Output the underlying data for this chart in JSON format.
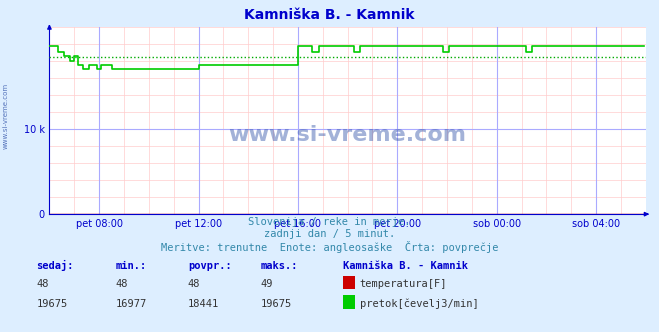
{
  "title": "Kamniška B. - Kamnik",
  "bg_color": "#ddeeff",
  "plot_bg_color": "#ffffff",
  "grid_color_major": "#aaaaff",
  "grid_color_minor": "#ffcccc",
  "x_min": 0,
  "x_max": 288,
  "y_min": 0,
  "y_max": 22000,
  "y_ticks": [
    0,
    10000
  ],
  "y_tick_labels": [
    "0",
    "10 k"
  ],
  "x_tick_positions": [
    24,
    72,
    120,
    168,
    216,
    264
  ],
  "x_tick_labels": [
    "pet 08:00",
    "pet 12:00",
    "pet 16:00",
    "pet 20:00",
    "sob 00:00",
    "sob 04:00"
  ],
  "avg_line_value": 18441,
  "avg_line_color": "#00aa00",
  "flow_color": "#00cc00",
  "temp_color": "#cc0000",
  "axis_color": "#0000cc",
  "title_color": "#0000cc",
  "watermark": "www.si-vreme.com",
  "watermark_color": "#3355aa",
  "subtitle1": "Slovenija / reke in morje.",
  "subtitle2": "zadnji dan / 5 minut.",
  "subtitle3": "Meritve: trenutne  Enote: angleosaške  Črta: povprečje",
  "subtitle_color": "#3388aa",
  "legend_title": "Kamniška B. - Kamnik",
  "legend_title_color": "#0000cc",
  "stat_headers": [
    "sedaj:",
    "min.:",
    "povpr.:",
    "maks.:"
  ],
  "stat_temp": [
    48,
    48,
    48,
    49
  ],
  "stat_flow": [
    19675,
    16977,
    18441,
    19675
  ],
  "label_temp": "temperatura[F]",
  "label_flow": "pretok[čevelj3/min]",
  "flow_data": [
    19675,
    19675,
    19675,
    19675,
    19000,
    19000,
    19000,
    18500,
    18500,
    18500,
    18000,
    18000,
    18500,
    18500,
    17500,
    17500,
    17000,
    17000,
    17000,
    17500,
    17500,
    17500,
    17500,
    17000,
    17000,
    17500,
    17500,
    17500,
    17500,
    17500,
    17000,
    17000,
    17000,
    17000,
    17000,
    17000,
    17000,
    17000,
    17000,
    17000,
    17000,
    17000,
    17000,
    17000,
    17000,
    17000,
    17000,
    17000,
    17000,
    17000,
    17000,
    17000,
    17000,
    17000,
    17000,
    17000,
    17000,
    17000,
    17000,
    17000,
    17000,
    17000,
    17000,
    17000,
    17000,
    17000,
    17000,
    17000,
    17000,
    17000,
    17000,
    17000,
    17500,
    17500,
    17500,
    17500,
    17500,
    17500,
    17500,
    17500,
    17500,
    17500,
    17500,
    17500,
    17500,
    17500,
    17500,
    17500,
    17500,
    17500,
    17500,
    17500,
    17500,
    17500,
    17500,
    17500,
    17500,
    17500,
    17500,
    17500,
    17500,
    17500,
    17500,
    17500,
    17500,
    17500,
    17500,
    17500,
    17500,
    17500,
    17500,
    17500,
    17500,
    17500,
    17500,
    17500,
    17500,
    17500,
    17500,
    17500,
    19675,
    19675,
    19675,
    19675,
    19675,
    19675,
    19675,
    19000,
    19000,
    19000,
    19675,
    19675,
    19675,
    19675,
    19675,
    19675,
    19675,
    19675,
    19675,
    19675,
    19675,
    19675,
    19675,
    19675,
    19675,
    19675,
    19675,
    19000,
    19000,
    19000,
    19675,
    19675,
    19675,
    19675,
    19675,
    19675,
    19675,
    19675,
    19675,
    19675,
    19675,
    19675,
    19675,
    19675,
    19675,
    19675,
    19675,
    19675,
    19675,
    19675,
    19675,
    19675,
    19675,
    19675,
    19675,
    19675,
    19675,
    19675,
    19675,
    19675,
    19675,
    19675,
    19675,
    19675,
    19675,
    19675,
    19675,
    19675,
    19675,
    19675,
    19000,
    19000,
    19000,
    19675,
    19675,
    19675,
    19675,
    19675,
    19675,
    19675,
    19675,
    19675,
    19675,
    19675,
    19675,
    19675,
    19675,
    19675,
    19675,
    19675,
    19675,
    19675,
    19675,
    19675,
    19675,
    19675,
    19675,
    19675,
    19675,
    19675,
    19675,
    19675,
    19675,
    19675,
    19675,
    19675,
    19675,
    19675,
    19675,
    19675,
    19000,
    19000,
    19000,
    19675,
    19675,
    19675,
    19675,
    19675,
    19675,
    19675,
    19675,
    19675,
    19675,
    19675,
    19675,
    19675,
    19675,
    19675,
    19675,
    19675,
    19675,
    19675,
    19675,
    19675,
    19675,
    19675,
    19675,
    19675,
    19675,
    19675,
    19675,
    19675,
    19675,
    19675,
    19675,
    19675,
    19675,
    19675,
    19675,
    19675,
    19675,
    19675,
    19675,
    19675,
    19675,
    19675,
    19675,
    19675,
    19675,
    19675,
    19675,
    19675,
    19675,
    19675,
    19675,
    19675,
    19675,
    19675
  ]
}
